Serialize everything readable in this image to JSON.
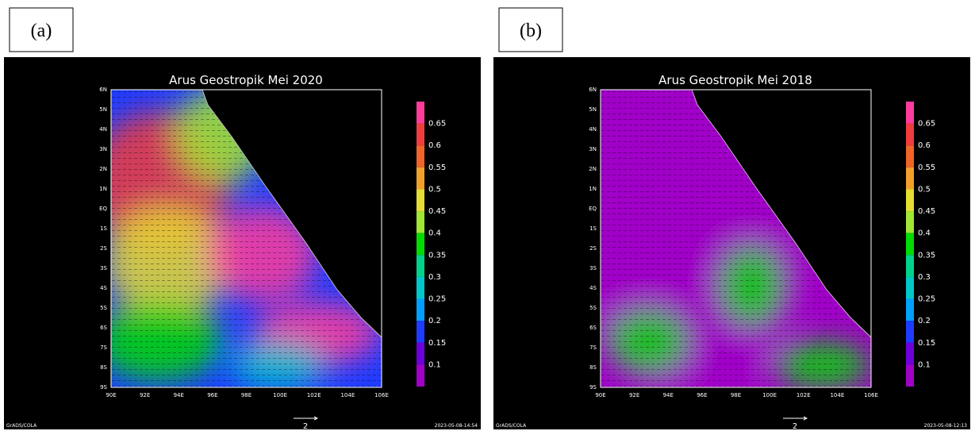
{
  "panels": [
    {
      "label": "(a)",
      "title": "Arus Geostropik Mei 2020",
      "timestamp": "2023-05-08-14:54"
    },
    {
      "label": "(b)",
      "title": "Arus Geostropik Mei 2018",
      "timestamp": "2023-05-08-12:13"
    }
  ],
  "lat_ticks": [
    "6N",
    "5N",
    "4N",
    "3N",
    "2N",
    "1N",
    "EQ",
    "1S",
    "2S",
    "3S",
    "4S",
    "5S",
    "6S",
    "7S",
    "8S",
    "9S"
  ],
  "lon_ticks": [
    "90E",
    "92E",
    "94E",
    "96E",
    "98E",
    "100E",
    "102E",
    "104E",
    "106E"
  ],
  "colorbar": {
    "labels": [
      0.65,
      0.6,
      0.55,
      0.5,
      0.45,
      0.4,
      0.35,
      0.3,
      0.25,
      0.2,
      0.15,
      0.1
    ],
    "colors": [
      "#ff3c9c",
      "#f03c3c",
      "#f06428",
      "#f0a028",
      "#e6dc32",
      "#a0e632",
      "#00dc00",
      "#00d28c",
      "#00c8c8",
      "#00a0ff",
      "#1e3cff",
      "#6e00dc",
      "#a000c8"
    ]
  },
  "footer_left": "GrADS/COLA",
  "scale_label": "2"
}
